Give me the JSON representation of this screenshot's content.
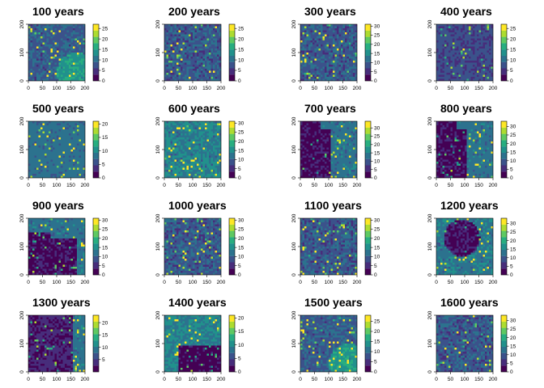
{
  "colors": {
    "scale": [
      "#440154",
      "#472d7b",
      "#3b528b",
      "#2c728e",
      "#21918c",
      "#28ae80",
      "#5ec962",
      "#addc30",
      "#fde725"
    ]
  },
  "chart_data": [
    {
      "type": "heatmap",
      "title": "100 years",
      "x_ticks": [
        "0",
        "50",
        "100",
        "150",
        "200"
      ],
      "y_ticks": [
        "0",
        "100",
        "200"
      ],
      "xlim": [
        0,
        200
      ],
      "ylim": [
        0,
        200
      ],
      "zlim": [
        0,
        27
      ],
      "legend_ticks": [
        "0",
        "5",
        "10",
        "15",
        "20",
        "25"
      ],
      "pattern": "mottled-bright-bottom-right"
    },
    {
      "type": "heatmap",
      "title": "200 years",
      "x_ticks": [
        "0",
        "50",
        "100",
        "150",
        "200"
      ],
      "y_ticks": [
        "0",
        "100",
        "200"
      ],
      "xlim": [
        0,
        200
      ],
      "ylim": [
        0,
        200
      ],
      "zlim": [
        0,
        27
      ],
      "legend_ticks": [
        "0",
        "5",
        "10",
        "15",
        "20",
        "25"
      ],
      "pattern": "mottled"
    },
    {
      "type": "heatmap",
      "title": "300 years",
      "x_ticks": [
        "0",
        "50",
        "100",
        "150",
        "200"
      ],
      "y_ticks": [
        "0",
        "100",
        "200"
      ],
      "xlim": [
        0,
        200
      ],
      "ylim": [
        0,
        200
      ],
      "zlim": [
        0,
        31
      ],
      "legend_ticks": [
        "0",
        "5",
        "10",
        "15",
        "20",
        "25",
        "30"
      ],
      "pattern": "mottled"
    },
    {
      "type": "heatmap",
      "title": "400 years",
      "x_ticks": [
        "0",
        "50",
        "100",
        "150",
        "200"
      ],
      "y_ticks": [
        "0",
        "100",
        "200"
      ],
      "xlim": [
        0,
        200
      ],
      "ylim": [
        0,
        200
      ],
      "zlim": [
        0,
        27
      ],
      "legend_ticks": [
        "0",
        "5",
        "10",
        "15",
        "20",
        "25"
      ],
      "pattern": "speckled-dark"
    },
    {
      "type": "heatmap",
      "title": "500 years",
      "x_ticks": [
        "0",
        "50",
        "100",
        "150",
        "200"
      ],
      "y_ticks": [
        "0",
        "100",
        "200"
      ],
      "xlim": [
        0,
        200
      ],
      "ylim": [
        0,
        200
      ],
      "zlim": [
        0,
        21
      ],
      "legend_ticks": [
        "0",
        "5",
        "10",
        "15",
        "20"
      ],
      "pattern": "uniform-mid"
    },
    {
      "type": "heatmap",
      "title": "600 years",
      "x_ticks": [
        "0",
        "50",
        "100",
        "150",
        "200"
      ],
      "y_ticks": [
        "0",
        "100",
        "200"
      ],
      "xlim": [
        0,
        200
      ],
      "ylim": [
        0,
        200
      ],
      "zlim": [
        0,
        31
      ],
      "legend_ticks": [
        "0",
        "5",
        "10",
        "15",
        "20",
        "25",
        "30"
      ],
      "pattern": "mottled-teal"
    },
    {
      "type": "heatmap",
      "title": "700 years",
      "x_ticks": [
        "0",
        "50",
        "100",
        "150",
        "200"
      ],
      "y_ticks": [
        "0",
        "100",
        "200"
      ],
      "xlim": [
        0,
        200
      ],
      "ylim": [
        0,
        200
      ],
      "zlim": [
        0,
        34
      ],
      "legend_ticks": [
        "0",
        "5",
        "10",
        "15",
        "20",
        "25",
        "30"
      ],
      "pattern": "dark-left-patch"
    },
    {
      "type": "heatmap",
      "title": "800 years",
      "x_ticks": [
        "0",
        "50",
        "100",
        "150",
        "200"
      ],
      "y_ticks": [
        "0",
        "100",
        "200"
      ],
      "xlim": [
        0,
        200
      ],
      "ylim": [
        0,
        200
      ],
      "zlim": [
        0,
        33
      ],
      "legend_ticks": [
        "0",
        "5",
        "10",
        "15",
        "20",
        "25",
        "30"
      ],
      "pattern": "dark-left-patch"
    },
    {
      "type": "heatmap",
      "title": "900 years",
      "x_ticks": [
        "0",
        "50",
        "100",
        "150",
        "200"
      ],
      "y_ticks": [
        "0",
        "100",
        "200"
      ],
      "xlim": [
        0,
        200
      ],
      "ylim": [
        0,
        200
      ],
      "zlim": [
        0,
        31
      ],
      "legend_ticks": [
        "0",
        "5",
        "10",
        "15",
        "20",
        "25",
        "30"
      ],
      "pattern": "dark-bottom-left"
    },
    {
      "type": "heatmap",
      "title": "1000 years",
      "x_ticks": [
        "0",
        "50",
        "100",
        "150",
        "200"
      ],
      "y_ticks": [
        "0",
        "100",
        "200"
      ],
      "xlim": [
        0,
        200
      ],
      "ylim": [
        0,
        200
      ],
      "zlim": [
        0,
        31
      ],
      "legend_ticks": [
        "0",
        "5",
        "10",
        "15",
        "20",
        "25",
        "30"
      ],
      "pattern": "mottled"
    },
    {
      "type": "heatmap",
      "title": "1100 years",
      "x_ticks": [
        "0",
        "50",
        "100",
        "150",
        "200"
      ],
      "y_ticks": [
        "0",
        "100",
        "200"
      ],
      "xlim": [
        0,
        200
      ],
      "ylim": [
        0,
        200
      ],
      "zlim": [
        0,
        31
      ],
      "legend_ticks": [
        "0",
        "5",
        "10",
        "15",
        "20",
        "25",
        "30"
      ],
      "pattern": "mottled"
    },
    {
      "type": "heatmap",
      "title": "1200 years",
      "x_ticks": [
        "0",
        "50",
        "100",
        "150",
        "200"
      ],
      "y_ticks": [
        "0",
        "100",
        "200"
      ],
      "xlim": [
        0,
        200
      ],
      "ylim": [
        0,
        200
      ],
      "zlim": [
        0,
        33
      ],
      "legend_ticks": [
        "0",
        "5",
        "10",
        "15",
        "20",
        "25",
        "30"
      ],
      "pattern": "dark-center-patch"
    },
    {
      "type": "heatmap",
      "title": "1300 years",
      "x_ticks": [
        "0",
        "50",
        "100",
        "150",
        "200"
      ],
      "y_ticks": [
        "0",
        "100",
        "200"
      ],
      "xlim": [
        0,
        200
      ],
      "ylim": [
        0,
        200
      ],
      "zlim": [
        0,
        23
      ],
      "legend_ticks": [
        "5",
        "10",
        "15",
        "20"
      ],
      "pattern": "dark-left-large"
    },
    {
      "type": "heatmap",
      "title": "1400 years",
      "x_ticks": [
        "0",
        "50",
        "100",
        "150",
        "200"
      ],
      "y_ticks": [
        "0",
        "100",
        "200"
      ],
      "xlim": [
        0,
        200
      ],
      "ylim": [
        0,
        200
      ],
      "zlim": [
        0,
        21
      ],
      "legend_ticks": [
        "0",
        "5",
        "10",
        "15",
        "20"
      ],
      "pattern": "dark-bottom-right"
    },
    {
      "type": "heatmap",
      "title": "1500 years",
      "x_ticks": [
        "0",
        "50",
        "100",
        "150",
        "200"
      ],
      "y_ticks": [
        "0",
        "100",
        "200"
      ],
      "xlim": [
        0,
        200
      ],
      "ylim": [
        0,
        200
      ],
      "zlim": [
        0,
        28
      ],
      "legend_ticks": [
        "0",
        "5",
        "10",
        "15",
        "20",
        "25"
      ],
      "pattern": "mottled-bright-bottom-right"
    },
    {
      "type": "heatmap",
      "title": "1600 years",
      "x_ticks": [
        "0",
        "50",
        "100",
        "150",
        "200"
      ],
      "y_ticks": [
        "0",
        "100",
        "200"
      ],
      "xlim": [
        0,
        200
      ],
      "ylim": [
        0,
        200
      ],
      "zlim": [
        0,
        33
      ],
      "legend_ticks": [
        "0",
        "5",
        "10",
        "15",
        "20",
        "25",
        "30"
      ],
      "pattern": "mottled"
    }
  ]
}
